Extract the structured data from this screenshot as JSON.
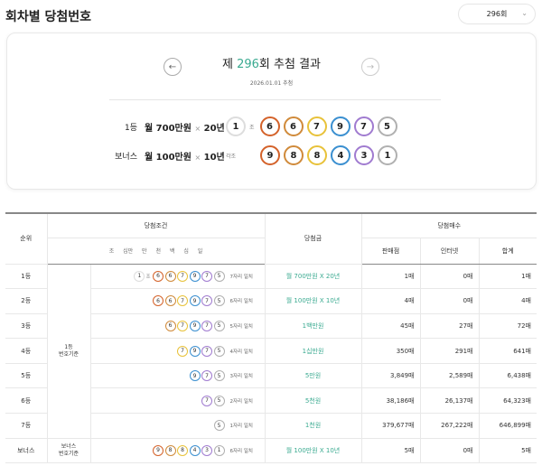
{
  "header": {
    "title": "회차별 당첨번호",
    "select_value": "296회"
  },
  "colors": {
    "accent": "#3aaa90",
    "ball_colors": [
      "#d4622a",
      "#d08a3a",
      "#e8c23a",
      "#3a8fd0",
      "#a07bd0",
      "#b0b0b0"
    ],
    "jo_ball": "#dddddd"
  },
  "draw": {
    "prefix": "제 ",
    "round": "296",
    "suffix": "회 추첨 결과",
    "date": "2026.01.01 추첨",
    "first": {
      "label": "1등",
      "amount": "월 700만원",
      "x": "×",
      "years": "20년",
      "jo": "1",
      "jo_label": "조",
      "numbers": [
        "6",
        "6",
        "7",
        "9",
        "7",
        "5"
      ]
    },
    "bonus": {
      "label": "보너스",
      "amount": "월 100만원",
      "x": "×",
      "years": "10년",
      "jo_label": "각조",
      "numbers": [
        "9",
        "8",
        "8",
        "4",
        "3",
        "1"
      ]
    }
  },
  "table": {
    "headers": {
      "rank": "순위",
      "condition": "당첨조건",
      "digits": "조  십만  만  천  백  십  일",
      "prize": "당첨금",
      "count": "당첨매수",
      "store": "판매점",
      "internet": "인터넷",
      "total": "합계"
    },
    "group_first": "1등\n번호기준",
    "group_bonus": "보너스\n번호기준",
    "rows": [
      {
        "rank": "1등",
        "jo": "1",
        "jo_label": "조",
        "balls": [
          "6",
          "6",
          "7",
          "9",
          "7",
          "5"
        ],
        "match": "7자리 일치",
        "prize": "월 700만원 X 20년",
        "store": "1매",
        "internet": "0매",
        "total": "1매"
      },
      {
        "rank": "2등",
        "balls": [
          "6",
          "6",
          "7",
          "9",
          "7",
          "5"
        ],
        "match": "6자리 일치",
        "prize": "월 100만원 X 10년",
        "store": "4매",
        "internet": "0매",
        "total": "4매"
      },
      {
        "rank": "3등",
        "balls": [
          "6",
          "7",
          "9",
          "7",
          "5"
        ],
        "match": "5자리 일치",
        "prize": "1백만원",
        "store": "45매",
        "internet": "27매",
        "total": "72매"
      },
      {
        "rank": "4등",
        "balls": [
          "7",
          "9",
          "7",
          "5"
        ],
        "match": "4자리 일치",
        "prize": "1십만원",
        "store": "350매",
        "internet": "291매",
        "total": "641매"
      },
      {
        "rank": "5등",
        "balls": [
          "9",
          "7",
          "5"
        ],
        "match": "3자리 일치",
        "prize": "5만원",
        "store": "3,849매",
        "internet": "2,589매",
        "total": "6,438매"
      },
      {
        "rank": "6등",
        "balls": [
          "7",
          "5"
        ],
        "match": "2자리 일치",
        "prize": "5천원",
        "store": "38,186매",
        "internet": "26,137매",
        "total": "64,323매"
      },
      {
        "rank": "7등",
        "balls": [
          "5"
        ],
        "match": "1자리 일치",
        "prize": "1천원",
        "store": "379,677매",
        "internet": "267,222매",
        "total": "646,899매"
      },
      {
        "rank": "보너스",
        "balls": [
          "9",
          "8",
          "8",
          "4",
          "3",
          "1"
        ],
        "match": "6자리 일치",
        "prize": "월 100만원 X 10년",
        "store": "5매",
        "internet": "0매",
        "total": "5매"
      }
    ]
  }
}
